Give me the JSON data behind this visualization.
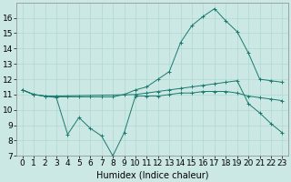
{
  "xlabel": "Humidex (Indice chaleur)",
  "bg_color": "#cce8e4",
  "grid_color": "#b0d8d0",
  "line_color": "#1a7a6e",
  "xlim": [
    -0.5,
    23.5
  ],
  "ylim": [
    7,
    17
  ],
  "yticks": [
    7,
    8,
    9,
    10,
    11,
    12,
    13,
    14,
    15,
    16
  ],
  "xticks": [
    0,
    1,
    2,
    3,
    4,
    5,
    6,
    7,
    8,
    9,
    10,
    11,
    12,
    13,
    14,
    15,
    16,
    17,
    18,
    19,
    20,
    21,
    22,
    23
  ],
  "line1_x": [
    0,
    1,
    2,
    3,
    4,
    5,
    6,
    7,
    8,
    9,
    10,
    11,
    12,
    13,
    14,
    15,
    16,
    17,
    18,
    19,
    20,
    21,
    22,
    23
  ],
  "line1_y": [
    11.3,
    11.0,
    10.9,
    10.85,
    10.85,
    10.85,
    10.85,
    10.85,
    10.85,
    11.0,
    11.3,
    11.5,
    12.0,
    12.5,
    14.4,
    15.5,
    16.1,
    16.6,
    15.8,
    15.1,
    13.7,
    12.0,
    11.9,
    11.8
  ],
  "line2_x": [
    0,
    1,
    2,
    3,
    10,
    11,
    12,
    13,
    14,
    15,
    16,
    17,
    18,
    19,
    20,
    21,
    22,
    23
  ],
  "line2_y": [
    11.3,
    11.0,
    10.9,
    10.9,
    11.0,
    11.1,
    11.2,
    11.3,
    11.4,
    11.5,
    11.6,
    11.7,
    11.8,
    11.9,
    10.4,
    9.8,
    9.1,
    8.5
  ],
  "line3_x": [
    0,
    1,
    2,
    3,
    4,
    5,
    6,
    7,
    8,
    9,
    10,
    11,
    12,
    13,
    14,
    15,
    16,
    17,
    18,
    19,
    20,
    21,
    22,
    23
  ],
  "line3_y": [
    11.3,
    11.0,
    10.9,
    10.8,
    8.4,
    9.5,
    8.8,
    8.3,
    7.0,
    8.5,
    10.9,
    10.9,
    10.9,
    11.0,
    11.1,
    11.1,
    11.2,
    11.2,
    11.2,
    11.1,
    10.9,
    10.8,
    10.7,
    10.6
  ],
  "xlabel_fontsize": 7,
  "tick_fontsize": 6.5
}
